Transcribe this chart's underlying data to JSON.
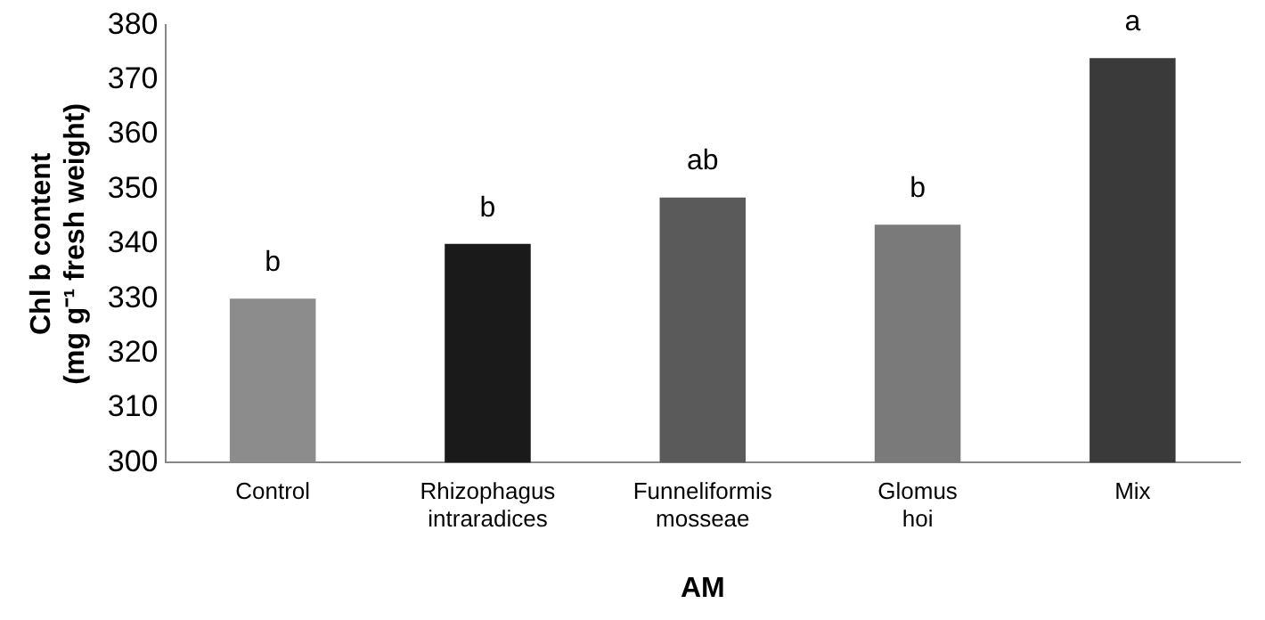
{
  "chart_data": {
    "type": "bar",
    "xlabel": "AM",
    "ylabel": "Chl b content\n(mg g⁻¹ fresh weight)",
    "categories": [
      "Control",
      "Rhizophagus intraradices",
      "Funneliformis mosseae",
      "Glomus hoi",
      "Mix"
    ],
    "values": [
      330,
      340,
      348.5,
      343.5,
      374
    ],
    "colors": [
      "#8c8c8c",
      "#1a1a1a",
      "#5a5a5a",
      "#7a7a7a",
      "#3a3a3a"
    ],
    "ylim": [
      300,
      380
    ],
    "yticks": [
      300,
      310,
      320,
      330,
      340,
      350,
      360,
      370,
      380
    ],
    "grid": false,
    "legend": false,
    "annotations": [
      {
        "text": "b",
        "x": "Control",
        "y": 330
      },
      {
        "text": "b",
        "x": "Rhizophagus intraradices",
        "y": 340
      },
      {
        "text": "ab",
        "x": "Funneliformis mosseae",
        "y": 348.5
      },
      {
        "text": "b",
        "x": "Glomus hoi",
        "y": 343.5
      },
      {
        "text": "a",
        "x": "Mix",
        "y": 374
      }
    ]
  }
}
